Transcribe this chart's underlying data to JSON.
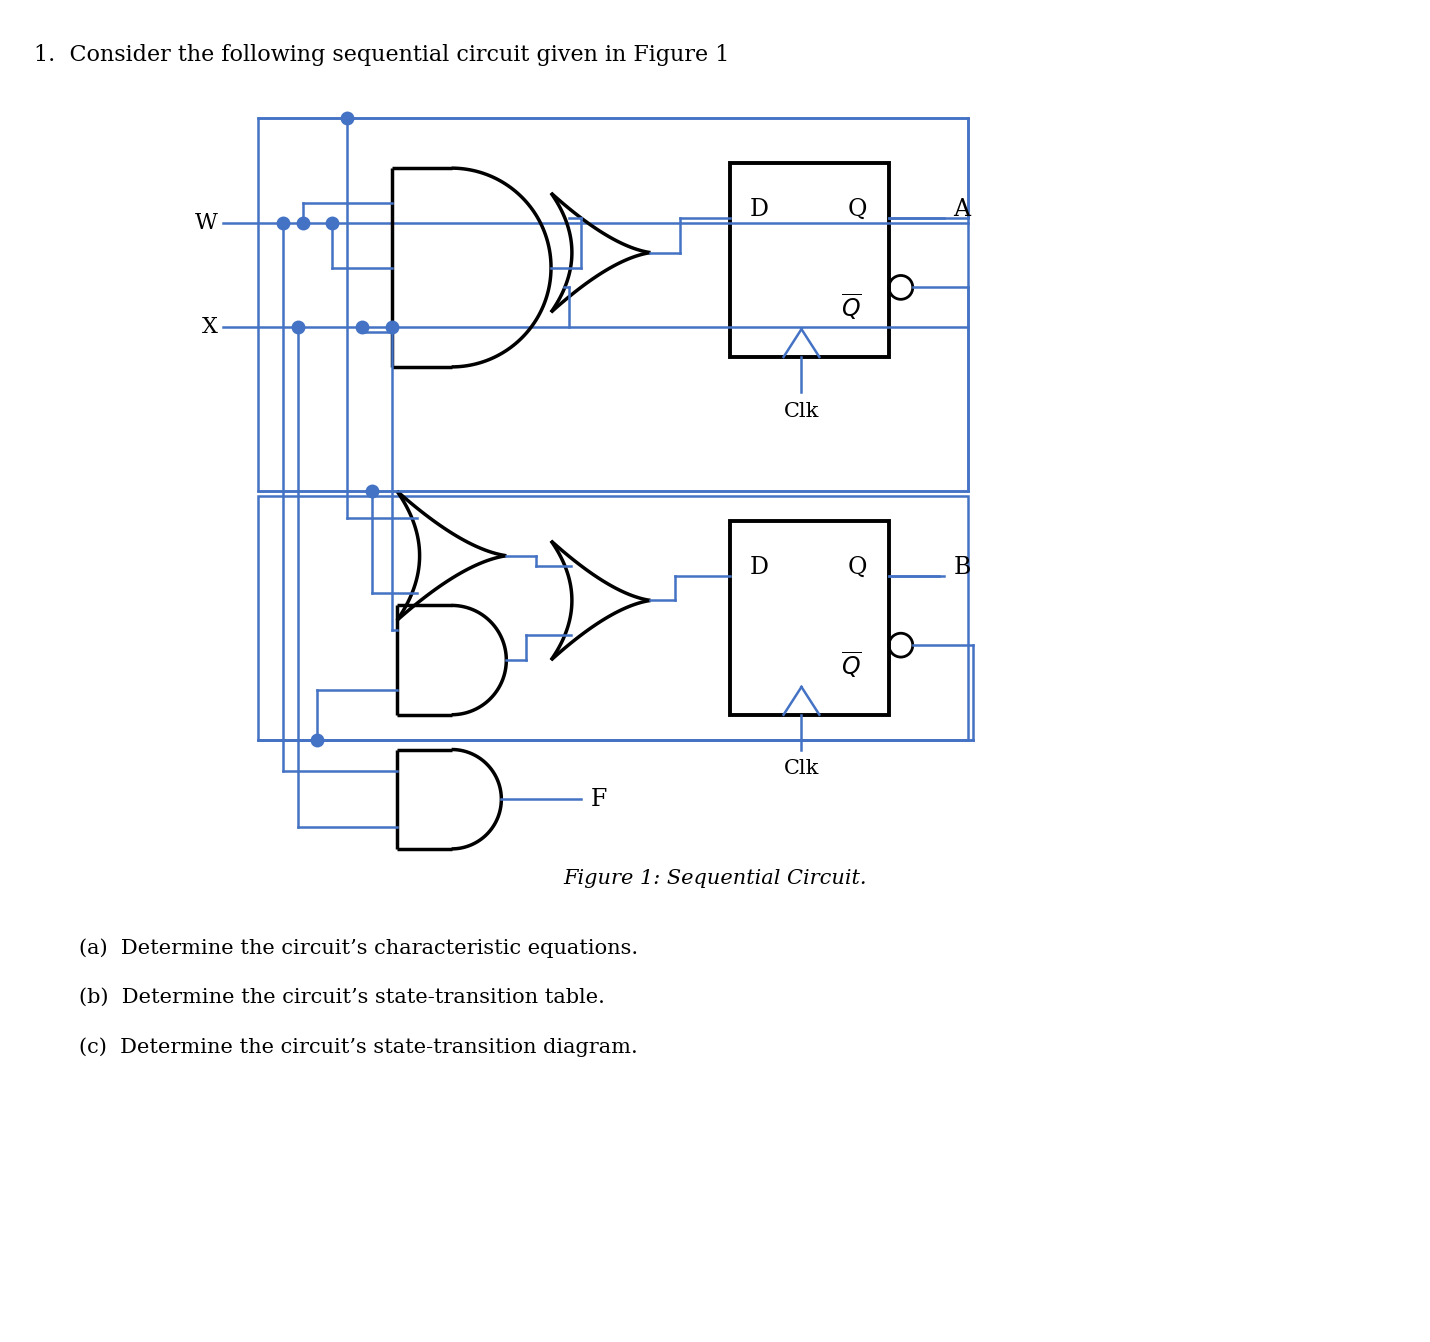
{
  "title_text": "1.  Consider the following sequential circuit given in Figure 1",
  "figure_caption": "Figure 1: Sequential Circuit.",
  "questions": [
    "(a)  Determine the circuit’s characteristic equations.",
    "(b)  Determine the circuit’s state-transition table.",
    "(c)  Determine the circuit’s state-transition diagram."
  ],
  "wire_color": "#4472C4",
  "gate_color": "#000000",
  "bg_color": "#ffffff",
  "text_color": "#000000",
  "dot_color": "#4472C4"
}
